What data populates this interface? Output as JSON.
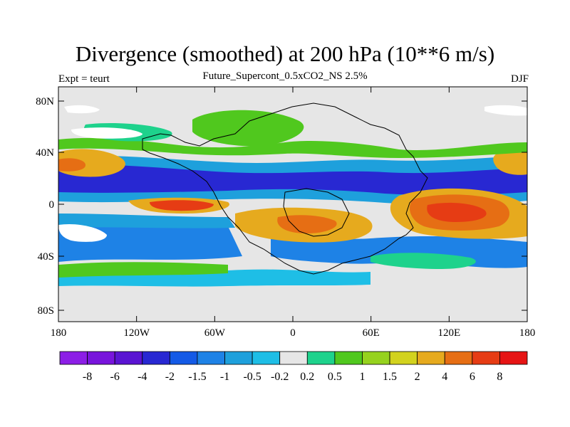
{
  "header": {
    "title": "Divergence (smoothed) at 200 hPa (10**6 m/s)",
    "left_label": "Expt = teurt",
    "center_label": "Future_Supercont_0.5xCO2_NS 2.5%",
    "right_label": "DJF"
  },
  "map": {
    "x_ticks": [
      "180",
      "120W",
      "60W",
      "0",
      "60E",
      "120E",
      "180"
    ],
    "y_ticks": [
      "80N",
      "40N",
      "0",
      "40S",
      "80S"
    ],
    "background_color": "#e6e6e6"
  },
  "colorbar": {
    "labels": [
      "-8",
      "-6",
      "-4",
      "-2",
      "-1.5",
      "-1",
      "-0.5",
      "-0.2",
      "0.2",
      "0.5",
      "1",
      "1.5",
      "2",
      "4",
      "6",
      "8"
    ],
    "colors": [
      "#8c1ee6",
      "#7814dc",
      "#5a14d2",
      "#2828d2",
      "#145ae6",
      "#1e82e6",
      "#1ea0dc",
      "#1ebee6",
      "#e6e6e6",
      "#1ed28c",
      "#50c81e",
      "#96d21e",
      "#d2d21e",
      "#e6aa1e",
      "#e66e14",
      "#e63c14",
      "#e61414"
    ]
  }
}
